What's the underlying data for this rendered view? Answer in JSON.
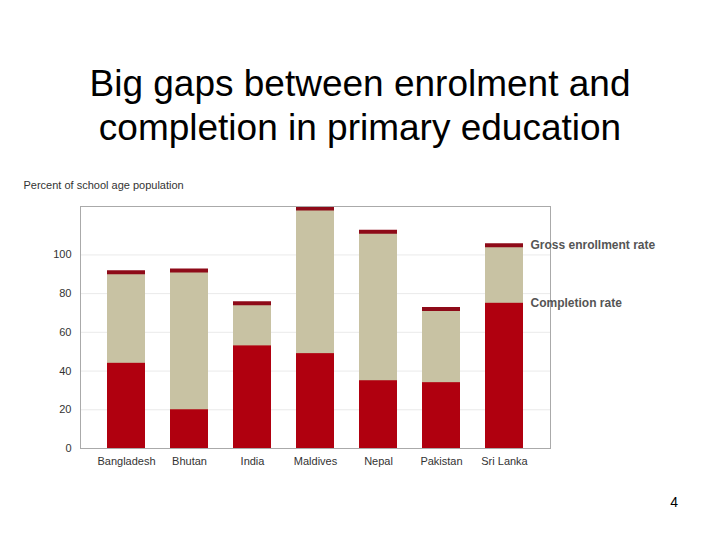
{
  "chart_data": {
    "type": "bar",
    "title": "Big gaps between enrolment and completion in primary education",
    "y_label": "Percent of school age population",
    "categories": [
      "Bangladesh",
      "Bhutan",
      "India",
      "Maldives",
      "Nepal",
      "Pakistan",
      "Sri Lanka"
    ],
    "series": [
      {
        "name": "Gross enrollment rate",
        "color": "#c8c2a3",
        "values": [
          91,
          92,
          75,
          124,
          112,
          72,
          105
        ]
      },
      {
        "name": "Completion rate",
        "color": "#b0000f",
        "values": [
          44,
          20,
          53,
          49,
          35,
          34,
          75
        ]
      }
    ],
    "ylim": [
      0,
      125
    ],
    "yticks": [
      0,
      20,
      40,
      60,
      80,
      100
    ],
    "grid": true,
    "page_number": "4"
  }
}
